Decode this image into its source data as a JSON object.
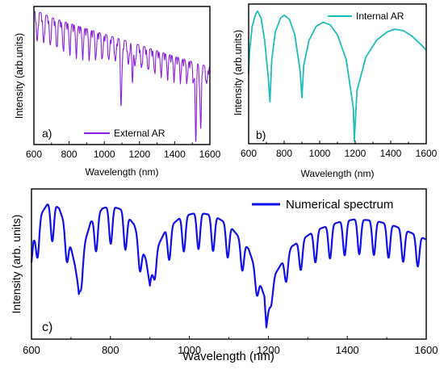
{
  "chart_data": [
    {
      "type": "line",
      "panel_label": "a)",
      "xlabel": "Wavelength (nm)",
      "ylabel": "Intensity (arb.units)",
      "xlim": [
        600,
        1600
      ],
      "xticks": [
        "600",
        "800",
        "1000",
        "1200",
        "1400",
        "1600"
      ],
      "series": [
        {
          "name": "External AR",
          "color": "#8a1fe0",
          "x": [
            600,
            650,
            700,
            750,
            800,
            850,
            900,
            950,
            1000,
            1050,
            1100,
            1150,
            1200,
            1250,
            1300,
            1350,
            1400,
            1450,
            1500,
            1550,
            1600
          ],
          "upper": [
            0.97,
            0.95,
            0.92,
            0.9,
            0.88,
            0.86,
            0.84,
            0.82,
            0.8,
            0.78,
            0.76,
            0.74,
            0.72,
            0.7,
            0.68,
            0.66,
            0.64,
            0.62,
            0.6,
            0.58,
            0.56
          ],
          "fringes_per_100nm": 2.7,
          "deep_minima": [
            {
              "x": 1095,
              "y": 0.28
            },
            {
              "x": 1160,
              "y": 0.45
            },
            {
              "x": 1520,
              "y": 0.02
            },
            {
              "x": 1548,
              "y": 0.12
            }
          ]
        }
      ],
      "legend_position": "bottom-right"
    },
    {
      "type": "line",
      "panel_label": "b)",
      "xlabel": "Wavelength (nm)",
      "ylabel": "Intensity (arb.units)",
      "xlim": [
        600,
        1600
      ],
      "xticks": [
        "600",
        "800",
        "1000",
        "1200",
        "1400",
        "1600"
      ],
      "series": [
        {
          "name": "Internal AR",
          "color": "#1fbcbc",
          "x": [
            600,
            605,
            620,
            640,
            650,
            670,
            690,
            710,
            720,
            730,
            750,
            780,
            800,
            830,
            860,
            890,
            900,
            910,
            940,
            980,
            1020,
            1060,
            1100,
            1150,
            1190,
            1195,
            1210,
            1260,
            1320,
            1380,
            1420,
            1470,
            1520,
            1570,
            1600
          ],
          "y": [
            0.5,
            0.66,
            0.84,
            0.93,
            0.95,
            0.9,
            0.74,
            0.48,
            0.3,
            0.6,
            0.8,
            0.9,
            0.92,
            0.89,
            0.78,
            0.52,
            0.33,
            0.56,
            0.74,
            0.84,
            0.87,
            0.85,
            0.78,
            0.6,
            0.25,
            0.02,
            0.38,
            0.62,
            0.74,
            0.8,
            0.82,
            0.81,
            0.77,
            0.71,
            0.67
          ]
        }
      ],
      "legend_position": "top-right"
    },
    {
      "type": "line",
      "panel_label": "c)",
      "xlabel": "Wavelength (nm)",
      "ylabel": "Intensity (arb. units)",
      "xlim": [
        600,
        1600
      ],
      "xticks": [
        "600",
        "800",
        "1000",
        "1200",
        "1400",
        "1600"
      ],
      "series": [
        {
          "name": "Numerical spectrum",
          "color": "#1010e8",
          "x": [
            600,
            605,
            620,
            640,
            650,
            670,
            690,
            710,
            720,
            730,
            750,
            780,
            800,
            830,
            860,
            890,
            900,
            910,
            940,
            980,
            1020,
            1060,
            1100,
            1150,
            1190,
            1195,
            1210,
            1260,
            1320,
            1380,
            1420,
            1470,
            1520,
            1570,
            1600
          ],
          "y": [
            0.5,
            0.66,
            0.84,
            0.93,
            0.95,
            0.9,
            0.74,
            0.48,
            0.3,
            0.6,
            0.8,
            0.9,
            0.92,
            0.89,
            0.78,
            0.52,
            0.33,
            0.56,
            0.74,
            0.84,
            0.87,
            0.85,
            0.78,
            0.6,
            0.25,
            0.02,
            0.38,
            0.62,
            0.74,
            0.8,
            0.82,
            0.81,
            0.77,
            0.71,
            0.67
          ],
          "fringes_per_100nm": 2.7,
          "fringe_depth": 0.24
        }
      ],
      "legend_position": "top-right"
    }
  ]
}
